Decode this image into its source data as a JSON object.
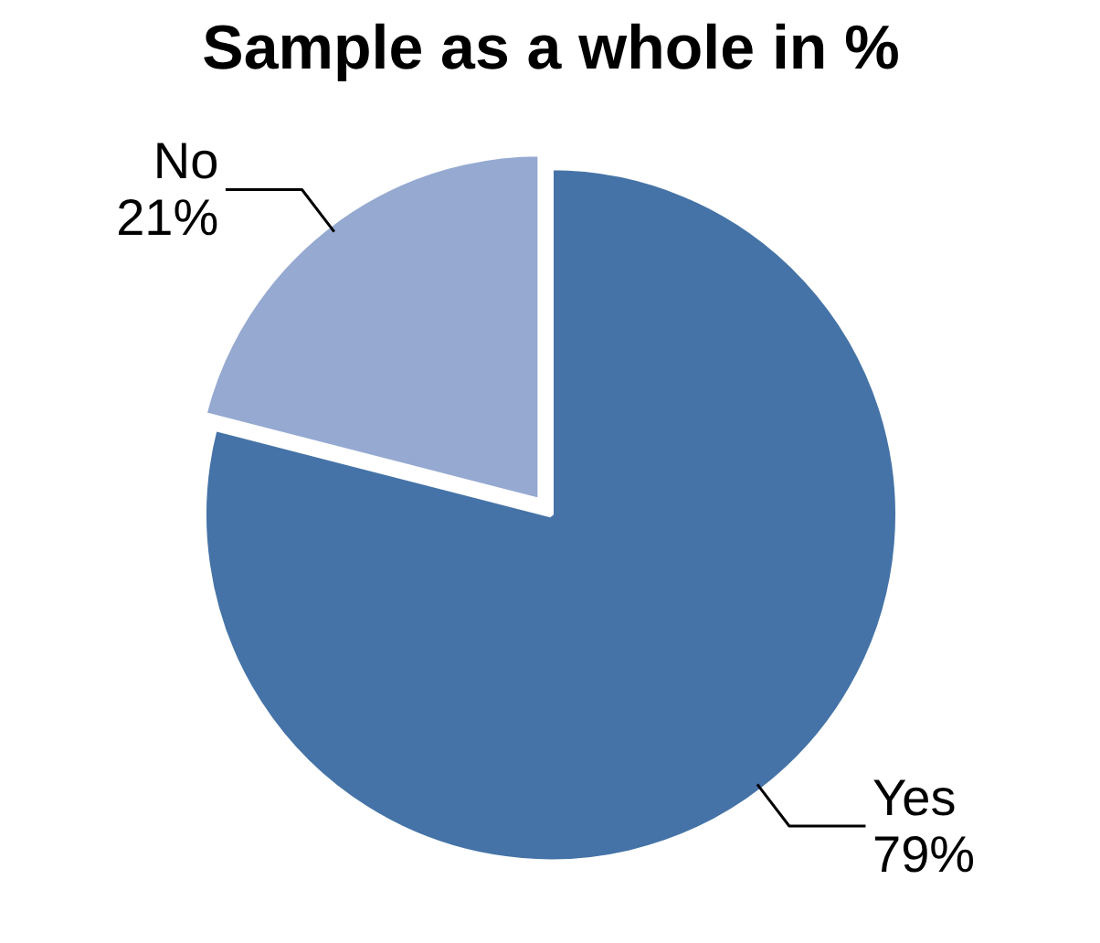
{
  "chart_data": {
    "type": "pie",
    "title": "Sample as a whole in %",
    "categories": [
      "Yes",
      "No"
    ],
    "values": [
      79,
      21
    ],
    "colors": [
      "#4573a7",
      "#95a9d1"
    ],
    "value_labels": [
      "79%",
      "21%"
    ]
  }
}
